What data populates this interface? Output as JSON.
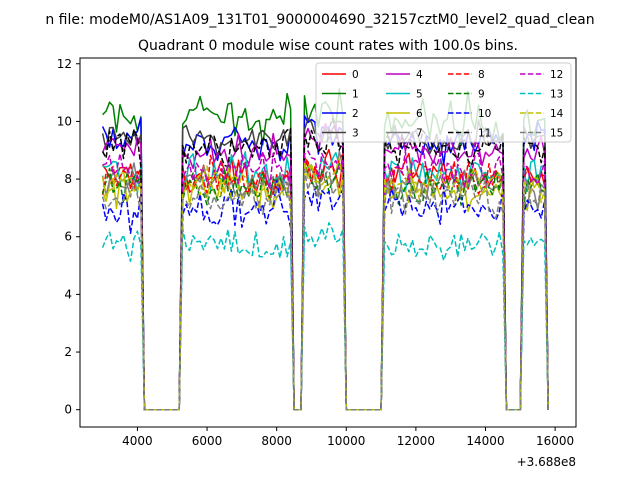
{
  "figure": {
    "suptitle": "n file: modeM0/AS1A09_131T01_9000004690_32157cztM0_level2_quad_clean",
    "title": "Quadrant 0 module wise count rates with 100.0s bins.",
    "offset_label": "+3.688e8"
  },
  "chart_data": {
    "type": "line",
    "title": "Quadrant 0 module wise count rates with 100.0s bins.",
    "xlabel": "",
    "ylabel": "",
    "x_offset": 368800000,
    "xlim": [
      2350,
      16600
    ],
    "ylim": [
      -0.6,
      12.2
    ],
    "xticks": [
      4000,
      6000,
      8000,
      10000,
      12000,
      14000,
      16000
    ],
    "xtick_labels": [
      "4000",
      "6000",
      "8000",
      "10000",
      "12000",
      "14000",
      "16000"
    ],
    "yticks": [
      0,
      2,
      4,
      6,
      8,
      10,
      12
    ],
    "ytick_labels": [
      "0",
      "2",
      "4",
      "6",
      "8",
      "10",
      "12"
    ],
    "grid": false,
    "legend_position": "top-right",
    "legend_columns": 4,
    "segments": [
      {
        "start": 3000,
        "end": 4100
      },
      {
        "start": 5300,
        "end": 8400
      },
      {
        "start": 8800,
        "end": 9900
      },
      {
        "start": 11100,
        "end": 14500
      },
      {
        "start": 15100,
        "end": 15700
      }
    ],
    "gaps": [
      {
        "from": 4100,
        "to": 5300
      },
      {
        "from": 8400,
        "to": 8800
      },
      {
        "from": 9900,
        "to": 11100
      },
      {
        "from": 14500,
        "to": 15100
      }
    ],
    "series": [
      {
        "name": "0",
        "color": "#ff0000",
        "dash": "solid",
        "level": 8.1,
        "noise": 0.3
      },
      {
        "name": "1",
        "color": "#008000",
        "dash": "solid",
        "level": 10.1,
        "noise": 0.35
      },
      {
        "name": "2",
        "color": "#0000ff",
        "dash": "solid",
        "level": 9.3,
        "noise": 0.35
      },
      {
        "name": "3",
        "color": "#404040",
        "dash": "solid",
        "level": 9.4,
        "noise": 0.3
      },
      {
        "name": "4",
        "color": "#c000c0",
        "dash": "solid",
        "level": 9.0,
        "noise": 0.3
      },
      {
        "name": "5",
        "color": "#00bfbf",
        "dash": "solid",
        "level": 8.2,
        "noise": 0.3
      },
      {
        "name": "6",
        "color": "#bfbf00",
        "dash": "solid",
        "level": 7.6,
        "noise": 0.3
      },
      {
        "name": "7",
        "color": "#7f7f7f",
        "dash": "solid",
        "level": 7.8,
        "noise": 0.3
      },
      {
        "name": "8",
        "color": "#ff0000",
        "dash": "dashed",
        "level": 8.0,
        "noise": 0.3
      },
      {
        "name": "9",
        "color": "#008000",
        "dash": "dashed",
        "level": 7.7,
        "noise": 0.3
      },
      {
        "name": "10",
        "color": "#0000ff",
        "dash": "dashed",
        "level": 7.0,
        "noise": 0.35
      },
      {
        "name": "11",
        "color": "#000000",
        "dash": "dashed",
        "level": 9.1,
        "noise": 0.3
      },
      {
        "name": "12",
        "color": "#c000c0",
        "dash": "dashed",
        "level": 8.3,
        "noise": 0.3
      },
      {
        "name": "13",
        "color": "#00bfbf",
        "dash": "dashed",
        "level": 5.7,
        "noise": 0.3
      },
      {
        "name": "14",
        "color": "#bfbf00",
        "dash": "dashed",
        "level": 7.8,
        "noise": 0.3
      },
      {
        "name": "15",
        "color": "#7f7f7f",
        "dash": "dashed",
        "level": 7.4,
        "noise": 0.35
      }
    ]
  }
}
